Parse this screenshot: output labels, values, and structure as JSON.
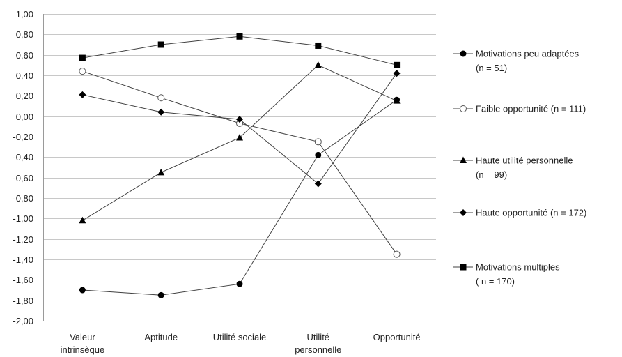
{
  "chart_data": {
    "type": "line",
    "title": "",
    "xlabel": "",
    "ylabel": "",
    "categories": [
      [
        "Valeur",
        "intrinsèque"
      ],
      [
        "Aptitude"
      ],
      [
        "Utilité sociale"
      ],
      [
        "Utilité",
        "personnelle"
      ],
      [
        "Opportunité"
      ]
    ],
    "ylim": [
      -2.0,
      1.0
    ],
    "ytick_step": 0.2,
    "y_ticks": [
      "1,00",
      "0,80",
      "0,60",
      "0,40",
      "0,20",
      "0,00",
      "-0,20",
      "-0,40",
      "-0,60",
      "-0,80",
      "-1,00",
      "-1,20",
      "-1,40",
      "-1,60",
      "-1,80",
      "-2,00"
    ],
    "grid": true,
    "legend_position": "right",
    "series": [
      {
        "name": "Motivations peu adaptées",
        "n_label": "(n = 51)",
        "marker": "circle-filled",
        "values": [
          -1.7,
          -1.75,
          -1.64,
          -0.38,
          0.16
        ]
      },
      {
        "name": "Faible opportunité (n = 111)",
        "n_label": "",
        "marker": "circle-open",
        "values": [
          0.44,
          0.18,
          -0.07,
          -0.25,
          -1.35
        ]
      },
      {
        "name": "Haute utilité personnelle",
        "n_label": "(n = 99)",
        "marker": "triangle",
        "values": [
          -1.02,
          -0.55,
          -0.21,
          0.5,
          0.15
        ]
      },
      {
        "name": "Haute opportunité (n = 172)",
        "n_label": "",
        "marker": "diamond",
        "values": [
          0.21,
          0.04,
          -0.03,
          -0.66,
          0.42
        ]
      },
      {
        "name": "Motivations multiples",
        "n_label": "( n = 170)",
        "marker": "square",
        "values": [
          0.57,
          0.7,
          0.78,
          0.69,
          0.5
        ]
      }
    ],
    "colors": {
      "line": "#404040",
      "marker": "#000000",
      "grid": "#c8c8c8",
      "axis": "#9a9a9a"
    }
  }
}
